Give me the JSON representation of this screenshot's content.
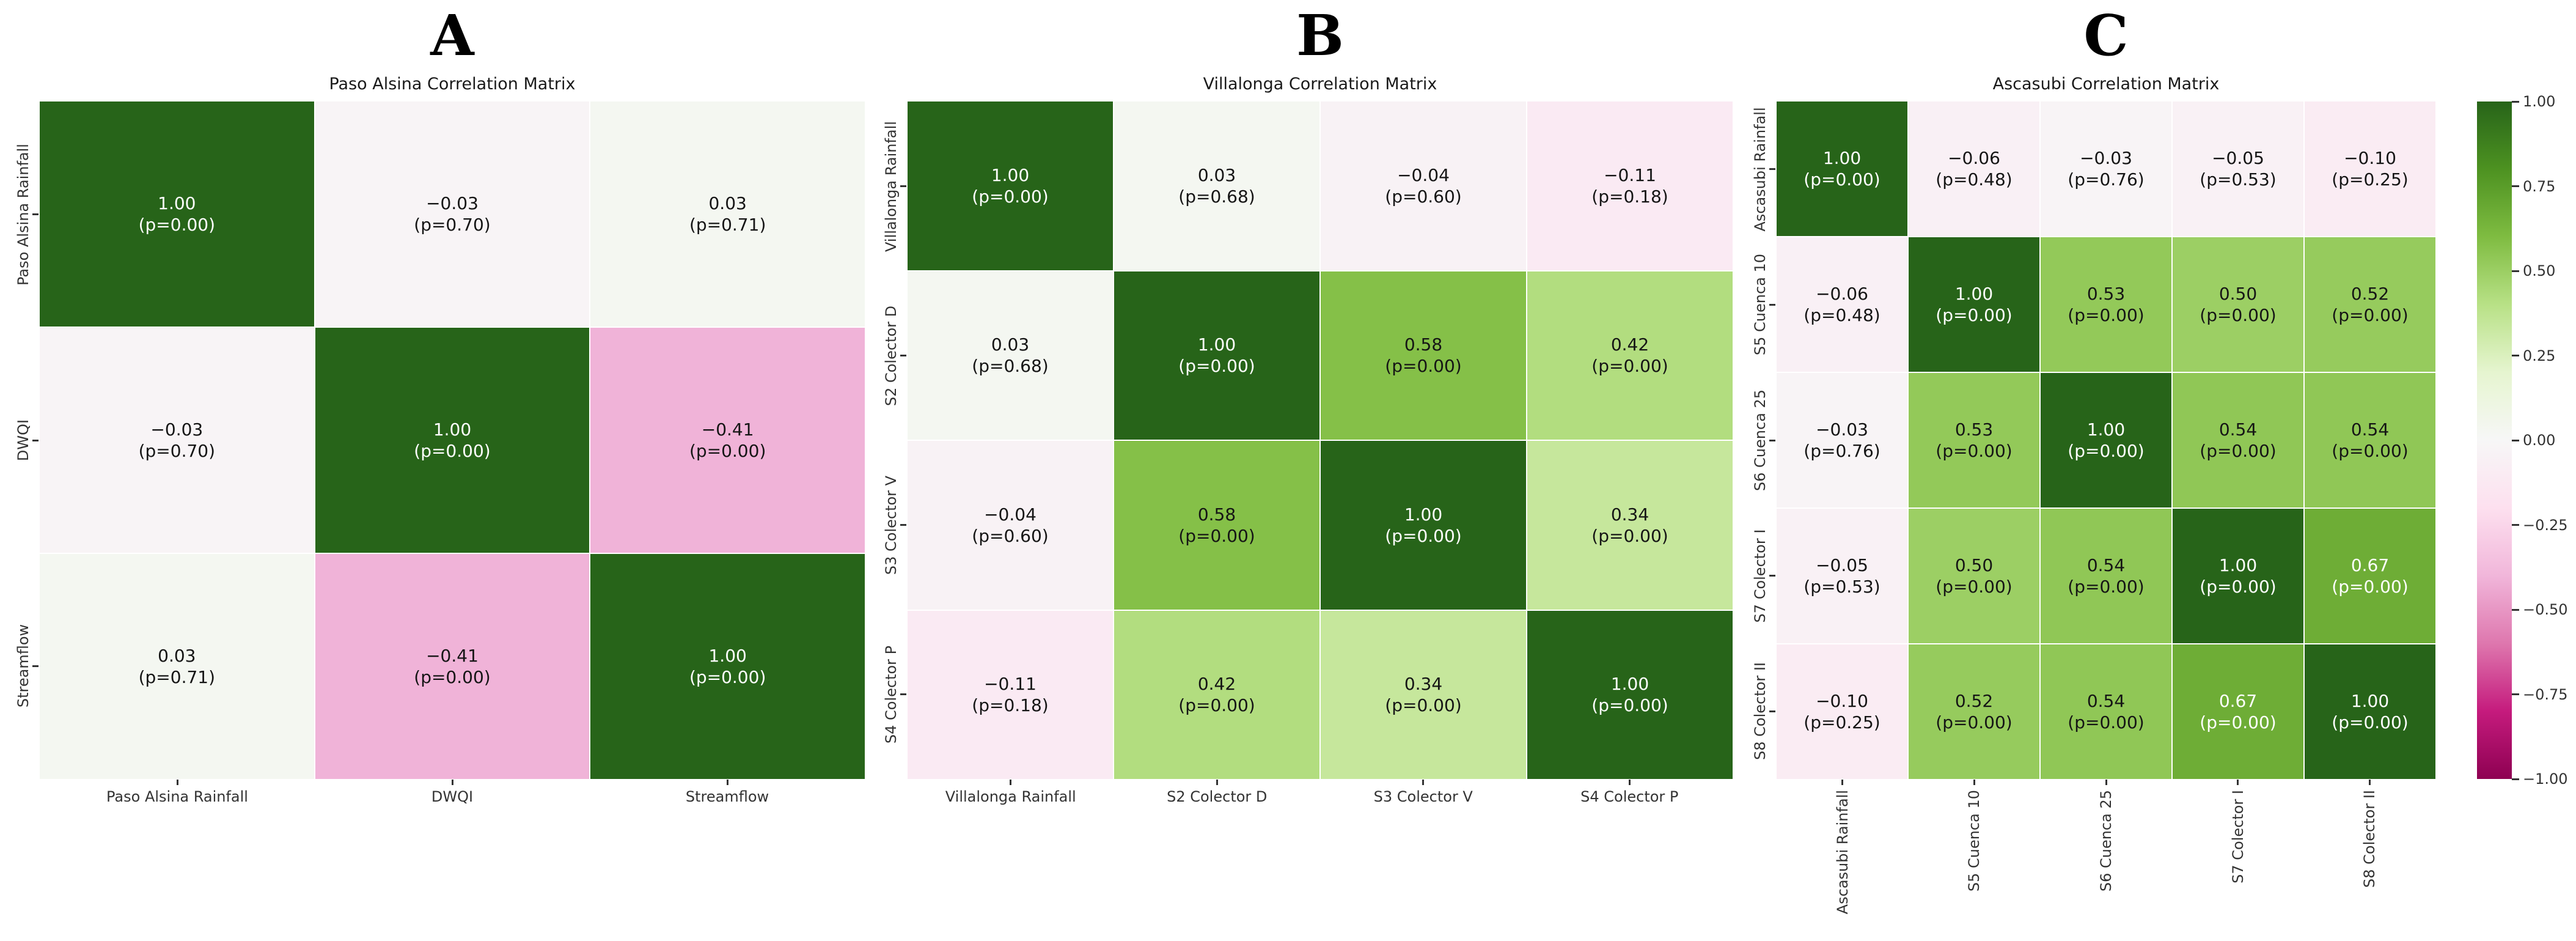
{
  "page": {
    "background": "#ffffff"
  },
  "chart_data": [
    {
      "type": "heatmap",
      "panel_label": "A",
      "title": "Paso Alsina Correlation Matrix",
      "categories": [
        "Paso Alsina Rainfall",
        "DWQI",
        "Streamflow"
      ],
      "r": [
        [
          1.0,
          -0.03,
          0.03
        ],
        [
          -0.03,
          1.0,
          -0.41
        ],
        [
          0.03,
          -0.41,
          1.0
        ]
      ],
      "p": [
        [
          0.0,
          0.7,
          0.71
        ],
        [
          0.7,
          0.0,
          0.0
        ],
        [
          0.71,
          0.0,
          0.0
        ]
      ],
      "cell_label_format": "{r}\n(p={p})",
      "x_tick_rotation": 0,
      "vmin": -1,
      "vmax": 1,
      "colormap": "PiYG",
      "grid": false,
      "legend": "shared colorbar right"
    },
    {
      "type": "heatmap",
      "panel_label": "B",
      "title": "Villalonga Correlation Matrix",
      "categories": [
        "Villalonga Rainfall",
        "S2 Colector D",
        "S3 Colector V",
        "S4 Colector P"
      ],
      "r": [
        [
          1.0,
          0.03,
          -0.04,
          -0.11
        ],
        [
          0.03,
          1.0,
          0.58,
          0.42
        ],
        [
          -0.04,
          0.58,
          1.0,
          0.34
        ],
        [
          -0.11,
          0.42,
          0.34,
          1.0
        ]
      ],
      "p": [
        [
          0.0,
          0.68,
          0.6,
          0.18
        ],
        [
          0.68,
          0.0,
          0.0,
          0.0
        ],
        [
          0.6,
          0.0,
          0.0,
          0.0
        ],
        [
          0.18,
          0.0,
          0.0,
          0.0
        ]
      ],
      "cell_label_format": "{r}\n(p={p})",
      "x_tick_rotation": 0,
      "vmin": -1,
      "vmax": 1,
      "colormap": "PiYG",
      "grid": false,
      "legend": "shared colorbar right"
    },
    {
      "type": "heatmap",
      "panel_label": "C",
      "title": "Ascasubi Correlation Matrix",
      "categories": [
        "Ascasubi Rainfall",
        "S5 Cuenca 10",
        "S6 Cuenca 25",
        "S7 Colector I",
        "S8 Colector II"
      ],
      "r": [
        [
          1.0,
          -0.06,
          -0.03,
          -0.05,
          -0.1
        ],
        [
          -0.06,
          1.0,
          0.53,
          0.5,
          0.52
        ],
        [
          -0.03,
          0.53,
          1.0,
          0.54,
          0.54
        ],
        [
          -0.05,
          0.5,
          0.54,
          1.0,
          0.67
        ],
        [
          -0.1,
          0.52,
          0.54,
          0.67,
          1.0
        ]
      ],
      "p": [
        [
          0.0,
          0.48,
          0.76,
          0.53,
          0.25
        ],
        [
          0.48,
          0.0,
          0.0,
          0.0,
          0.0
        ],
        [
          0.76,
          0.0,
          0.0,
          0.0,
          0.0
        ],
        [
          0.53,
          0.0,
          0.0,
          0.0,
          0.0
        ],
        [
          0.25,
          0.0,
          0.0,
          0.0,
          0.0
        ]
      ],
      "cell_label_format": "{r}\n(p={p})",
      "x_tick_rotation": 90,
      "vmin": -1,
      "vmax": 1,
      "colormap": "PiYG",
      "grid": false,
      "legend": "shared colorbar right"
    }
  ],
  "colorbar": {
    "vmin": -1,
    "vmax": 1,
    "colormap_name": "PiYG",
    "tick_labels": [
      "1.00",
      "0.75",
      "0.50",
      "0.25",
      "0.00",
      "−0.25",
      "−0.50",
      "−0.75",
      "−1.00"
    ],
    "stops_top_to_bottom": [
      "#276419",
      "#4d9221",
      "#7fbc41",
      "#b8e186",
      "#e6f5d0",
      "#f7f7f7",
      "#fde0ef",
      "#f1b6da",
      "#de77ae",
      "#c51b7d",
      "#8e0152"
    ]
  },
  "colors": {
    "annotation_dark": "#151515",
    "annotation_light": "#ffffff",
    "axis_text": "#333333",
    "title_text": "#1a1a1a"
  }
}
